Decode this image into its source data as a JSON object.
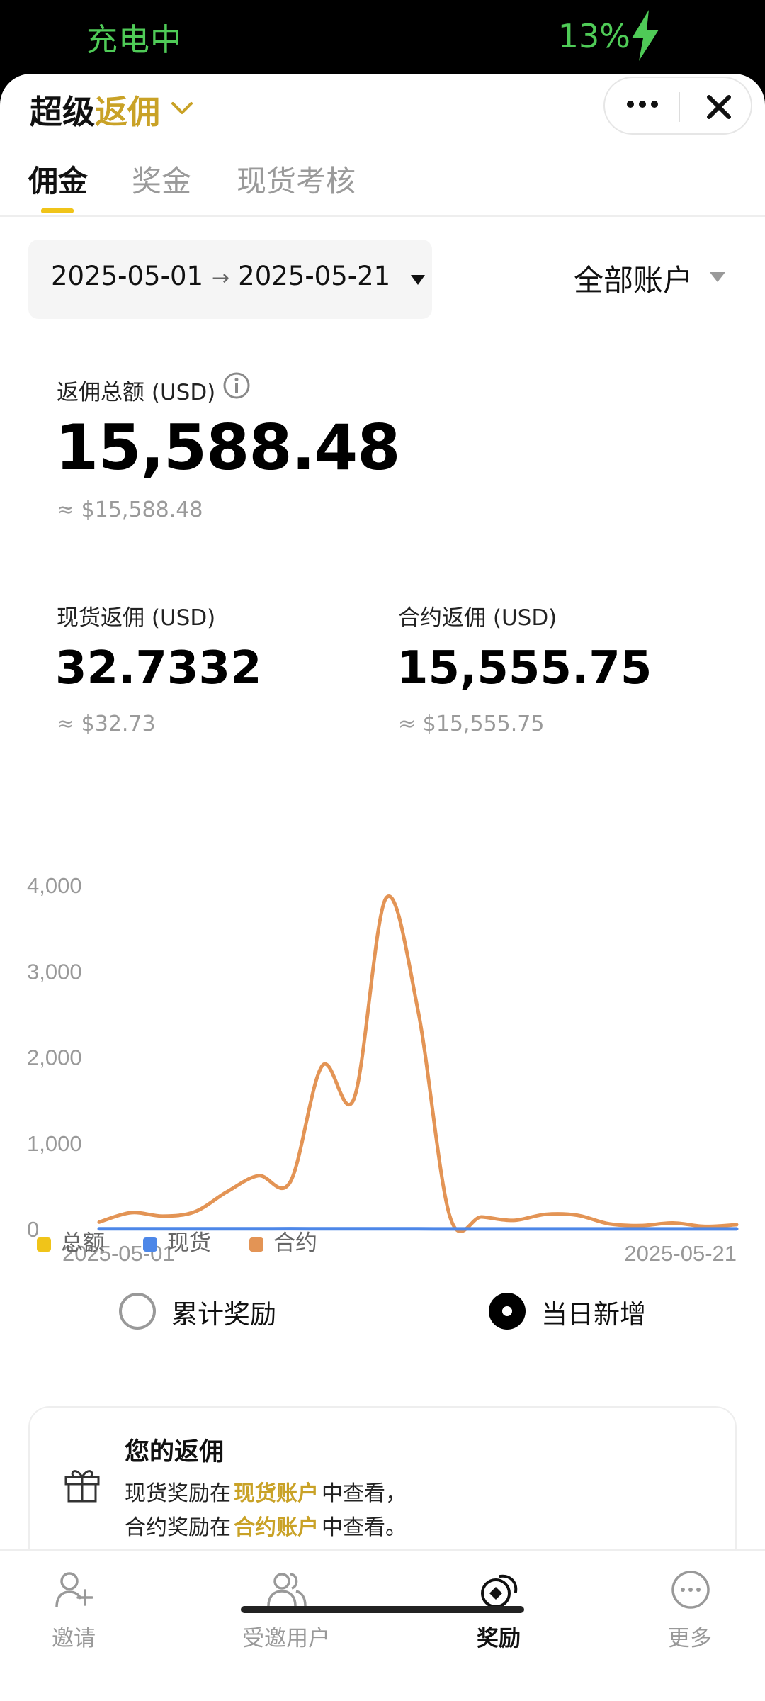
{
  "status_bar": {
    "charging_text": "充电中",
    "battery": "13%"
  },
  "header": {
    "title_part1": "超级",
    "title_part2": "返佣",
    "more_icon": "more-dots-icon",
    "close_icon": "close-icon"
  },
  "tabs": [
    {
      "label": "佣金",
      "active": true
    },
    {
      "label": "奖金",
      "active": false
    },
    {
      "label": "现货考核",
      "active": false
    }
  ],
  "filters": {
    "date_start": "2025-05-01",
    "date_arrow": "→",
    "date_end": "2025-05-21",
    "account": "全部账户"
  },
  "summary": {
    "total_label": "返佣总额 (USD)",
    "total_value": "15,588.48",
    "total_approx": "≈ $15,588.48",
    "spot_label": "现货返佣 (USD)",
    "spot_value": "32.7332",
    "spot_approx": "≈ $32.73",
    "futures_label": "合约返佣 (USD)",
    "futures_value": "15,555.75",
    "futures_approx": "≈ $15,555.75"
  },
  "chart_data": {
    "type": "line",
    "title": "",
    "xlabel": "",
    "ylabel": "",
    "x": [
      "2025-05-01",
      "2025-05-02",
      "2025-05-03",
      "2025-05-04",
      "2025-05-05",
      "2025-05-06",
      "2025-05-07",
      "2025-05-08",
      "2025-05-09",
      "2025-05-10",
      "2025-05-11",
      "2025-05-12",
      "2025-05-13",
      "2025-05-14",
      "2025-05-15",
      "2025-05-16",
      "2025-05-17",
      "2025-05-18",
      "2025-05-19",
      "2025-05-20",
      "2025-05-21"
    ],
    "x_tick_labels": [
      "2025-05-01",
      "2025-05-21"
    ],
    "y_ticks": [
      "0",
      "1,000",
      "2,000",
      "3,000",
      "4,000"
    ],
    "ylim": [
      0,
      4000
    ],
    "series": [
      {
        "name": "合约",
        "color": "#e39455",
        "values": [
          80,
          190,
          150,
          200,
          430,
          620,
          550,
          1900,
          1520,
          3850,
          2550,
          150,
          140,
          100,
          170,
          160,
          60,
          40,
          70,
          30,
          50
        ]
      },
      {
        "name": "现货",
        "color": "#4d87e8",
        "values": [
          2,
          2,
          2,
          2,
          2,
          2,
          3,
          2,
          2,
          2,
          2,
          1,
          1,
          1,
          1,
          1,
          1,
          1,
          1,
          1,
          1
        ]
      }
    ],
    "legend": [
      {
        "name": "总额",
        "color": "#f0c419"
      },
      {
        "name": "现货",
        "color": "#4d87e8"
      },
      {
        "name": "合约",
        "color": "#e39455"
      }
    ],
    "legend_position": "bottom-left",
    "grid": false
  },
  "mode": {
    "cumulative_label": "累计奖励",
    "daily_label": "当日新增",
    "selected": "daily"
  },
  "card": {
    "title": "您的返佣",
    "line1_prefix": "现货奖励在",
    "line1_link": "现货账户",
    "line1_suffix": "中查看，",
    "line2_prefix": "合约奖励在",
    "line2_link": "合约账户",
    "line2_suffix": "中查看。",
    "icon": "gift-icon"
  },
  "bottom_nav": [
    {
      "label": "邀请",
      "icon": "invite-icon",
      "active": false
    },
    {
      "label": "受邀用户",
      "icon": "users-icon",
      "active": false
    },
    {
      "label": "奖励",
      "icon": "reward-icon",
      "active": true
    },
    {
      "label": "更多",
      "icon": "more-icon",
      "active": false
    }
  ]
}
